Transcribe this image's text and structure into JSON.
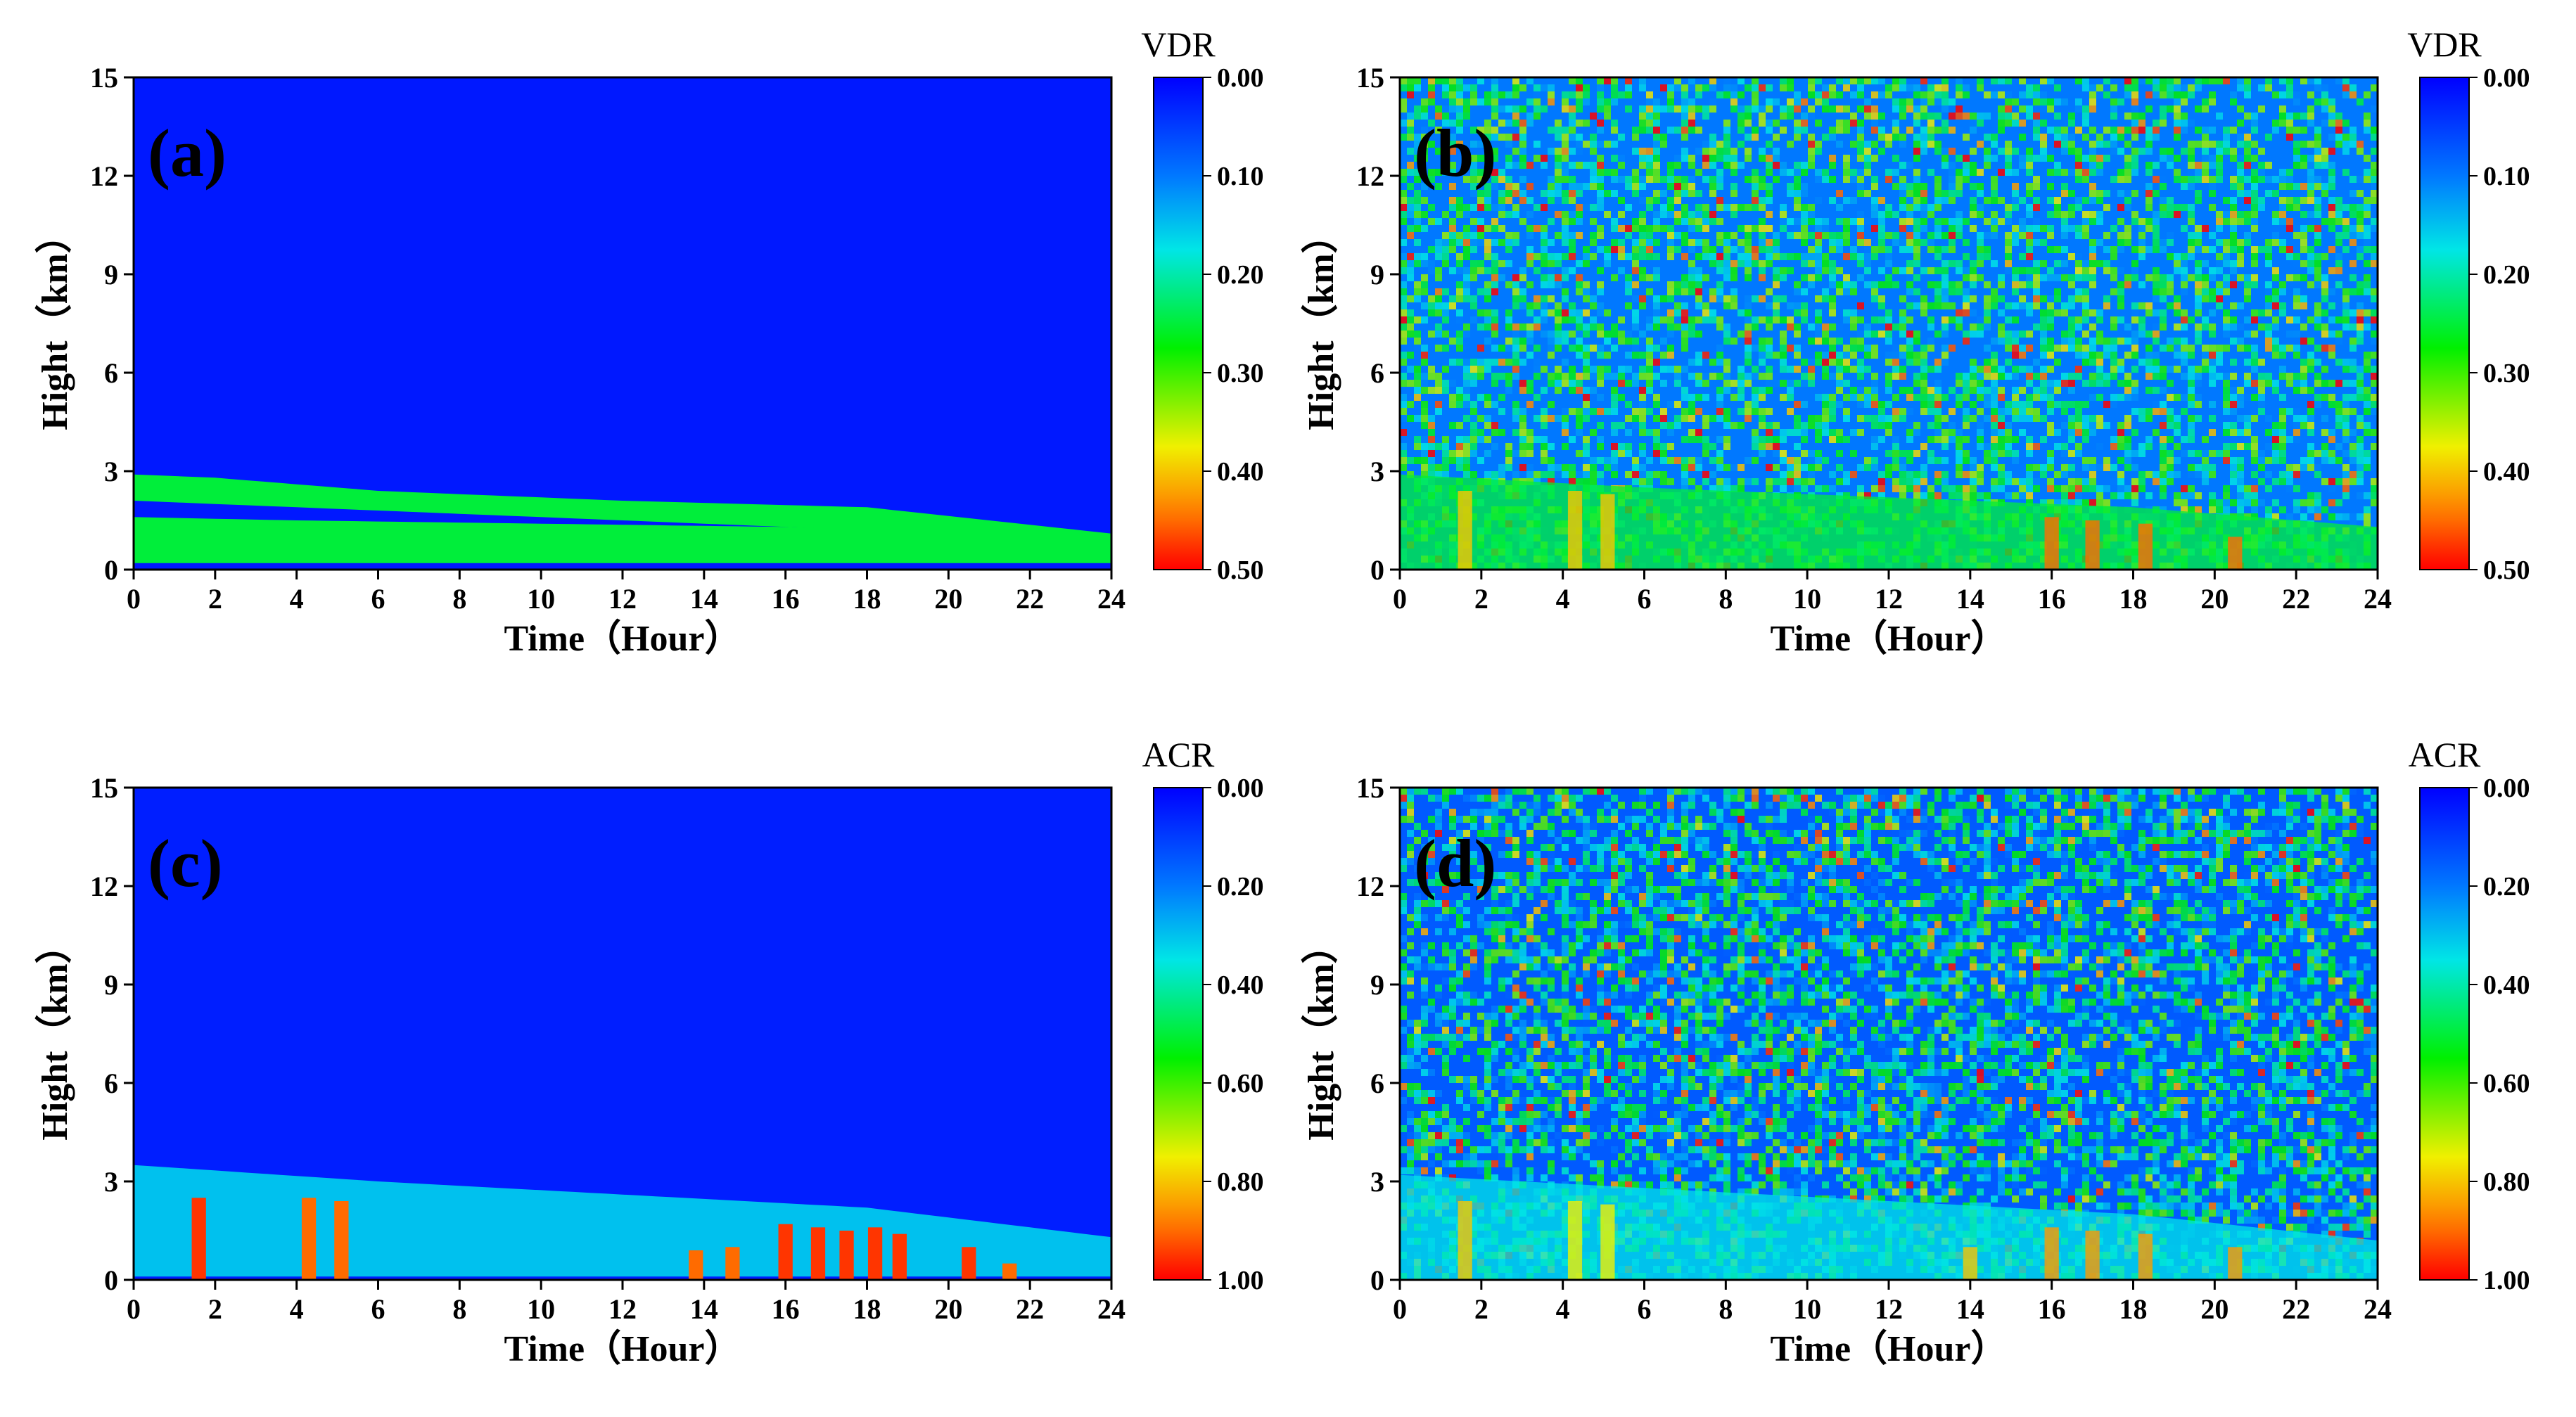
{
  "chart_data": [
    {
      "type": "heatmap",
      "panel": "(a)",
      "xlabel": "Time（Hour）",
      "ylabel": "Hight（km）",
      "xlim": [
        0,
        24
      ],
      "ylim": [
        0,
        15
      ],
      "xticks": [
        "0",
        "2",
        "4",
        "6",
        "8",
        "10",
        "12",
        "14",
        "16",
        "18",
        "20",
        "22",
        "24"
      ],
      "yticks": [
        "0",
        "3",
        "6",
        "9",
        "12",
        "15"
      ],
      "colorbar": {
        "title": "VDR",
        "ticks": [
          "0.00",
          "0.10",
          "0.20",
          "0.30",
          "0.40",
          "0.50"
        ],
        "range": [
          0.0,
          0.5
        ]
      },
      "noise": false,
      "background_value": 0.02,
      "layers": [
        {
          "name": "upper aerosol layer",
          "value": 0.25,
          "top": [
            [
              0,
              2.9
            ],
            [
              2,
              2.8
            ],
            [
              6,
              2.4
            ],
            [
              12,
              2.1
            ],
            [
              18,
              1.9
            ],
            [
              24,
              1.1
            ]
          ],
          "bottom": [
            [
              0,
              2.1
            ],
            [
              2,
              2.0
            ],
            [
              6,
              1.8
            ],
            [
              12,
              1.5
            ],
            [
              18,
              1.2
            ],
            [
              24,
              0.6
            ]
          ]
        },
        {
          "name": "lower aerosol layer",
          "value": 0.25,
          "top": [
            [
              0,
              1.6
            ],
            [
              4,
              1.5
            ],
            [
              10,
              1.4
            ],
            [
              16,
              1.3
            ],
            [
              24,
              1.0
            ]
          ],
          "bottom": [
            [
              0,
              0.2
            ],
            [
              24,
              0.2
            ]
          ]
        }
      ],
      "spikes": []
    },
    {
      "type": "heatmap",
      "panel": "(b)",
      "xlabel": "Time（Hour）",
      "ylabel": "Hight（km）",
      "xlim": [
        0,
        24
      ],
      "ylim": [
        0,
        15
      ],
      "xticks": [
        "0",
        "2",
        "4",
        "6",
        "8",
        "10",
        "12",
        "14",
        "16",
        "18",
        "20",
        "22",
        "24"
      ],
      "yticks": [
        "0",
        "3",
        "6",
        "9",
        "12",
        "15"
      ],
      "colorbar": {
        "title": "VDR",
        "ticks": [
          "0.00",
          "0.10",
          "0.20",
          "0.30",
          "0.40",
          "0.50"
        ],
        "range": [
          0.0,
          0.5
        ]
      },
      "noise": true,
      "background_value": 0.1,
      "layers": [
        {
          "name": "aerosol layer",
          "value": 0.25,
          "top": [
            [
              0,
              2.9
            ],
            [
              6,
              2.5
            ],
            [
              12,
              2.2
            ],
            [
              18,
              1.9
            ],
            [
              24,
              1.3
            ]
          ],
          "bottom": [
            [
              0,
              0.0
            ],
            [
              24,
              0.0
            ]
          ]
        }
      ],
      "spikes": [
        {
          "time": 1.6,
          "top": 2.4,
          "value": 0.4
        },
        {
          "time": 4.3,
          "top": 2.4,
          "value": 0.4
        },
        {
          "time": 5.1,
          "top": 2.3,
          "value": 0.4
        },
        {
          "time": 16.0,
          "top": 1.6,
          "value": 0.45
        },
        {
          "time": 17.0,
          "top": 1.5,
          "value": 0.45
        },
        {
          "time": 18.3,
          "top": 1.4,
          "value": 0.45
        },
        {
          "time": 20.5,
          "top": 1.0,
          "value": 0.45
        }
      ]
    },
    {
      "type": "heatmap",
      "panel": "(c)",
      "xlabel": "Time（Hour）",
      "ylabel": "Hight（km）",
      "xlim": [
        0,
        24
      ],
      "ylim": [
        0,
        15
      ],
      "xticks": [
        "0",
        "2",
        "4",
        "6",
        "8",
        "10",
        "12",
        "14",
        "16",
        "18",
        "20",
        "22",
        "24"
      ],
      "yticks": [
        "0",
        "3",
        "6",
        "9",
        "12",
        "15"
      ],
      "colorbar": {
        "title": "ACR",
        "ticks": [
          "0.00",
          "0.20",
          "0.40",
          "0.60",
          "0.80",
          "1.00"
        ],
        "range": [
          0.0,
          1.0
        ]
      },
      "noise": false,
      "background_value": 0.05,
      "layers": [
        {
          "name": "aerosol layer",
          "value": 0.3,
          "top": [
            [
              0,
              3.5
            ],
            [
              6,
              3.0
            ],
            [
              12,
              2.6
            ],
            [
              18,
              2.2
            ],
            [
              24,
              1.3
            ]
          ],
          "bottom": [
            [
              0,
              0.1
            ],
            [
              24,
              0.1
            ]
          ]
        }
      ],
      "spikes": [
        {
          "time": 1.6,
          "top": 2.5,
          "value": 0.95
        },
        {
          "time": 4.3,
          "top": 2.5,
          "value": 0.9
        },
        {
          "time": 5.1,
          "top": 2.4,
          "value": 0.9
        },
        {
          "time": 13.8,
          "top": 0.9,
          "value": 0.9
        },
        {
          "time": 14.7,
          "top": 1.0,
          "value": 0.9
        },
        {
          "time": 16.0,
          "top": 1.7,
          "value": 0.95
        },
        {
          "time": 16.8,
          "top": 1.6,
          "value": 0.95
        },
        {
          "time": 17.5,
          "top": 1.5,
          "value": 0.95
        },
        {
          "time": 18.2,
          "top": 1.6,
          "value": 0.95
        },
        {
          "time": 18.8,
          "top": 1.4,
          "value": 0.95
        },
        {
          "time": 20.5,
          "top": 1.0,
          "value": 0.95
        },
        {
          "time": 21.5,
          "top": 0.5,
          "value": 0.9
        }
      ]
    },
    {
      "type": "heatmap",
      "panel": "(d)",
      "xlabel": "Time（Hour）",
      "ylabel": "Hight（km）",
      "xlim": [
        0,
        24
      ],
      "ylim": [
        0,
        15
      ],
      "xticks": [
        "0",
        "2",
        "4",
        "6",
        "8",
        "10",
        "12",
        "14",
        "16",
        "18",
        "20",
        "22",
        "24"
      ],
      "yticks": [
        "0",
        "3",
        "6",
        "9",
        "12",
        "15"
      ],
      "colorbar": {
        "title": "ACR",
        "ticks": [
          "0.00",
          "0.20",
          "0.40",
          "0.60",
          "0.80",
          "1.00"
        ],
        "range": [
          0.0,
          1.0
        ]
      },
      "noise": true,
      "background_value": 0.15,
      "layers": [
        {
          "name": "aerosol layer",
          "value": 0.35,
          "top": [
            [
              0,
              3.2
            ],
            [
              6,
              2.8
            ],
            [
              12,
              2.4
            ],
            [
              18,
              2.0
            ],
            [
              24,
              1.2
            ]
          ],
          "bottom": [
            [
              0,
              0.0
            ],
            [
              24,
              0.0
            ]
          ]
        }
      ],
      "spikes": [
        {
          "time": 1.6,
          "top": 2.4,
          "value": 0.8
        },
        {
          "time": 4.3,
          "top": 2.4,
          "value": 0.75
        },
        {
          "time": 5.1,
          "top": 2.3,
          "value": 0.75
        },
        {
          "time": 14.0,
          "top": 1.0,
          "value": 0.8
        },
        {
          "time": 16.0,
          "top": 1.6,
          "value": 0.85
        },
        {
          "time": 17.0,
          "top": 1.5,
          "value": 0.85
        },
        {
          "time": 18.3,
          "top": 1.4,
          "value": 0.85
        },
        {
          "time": 20.5,
          "top": 1.0,
          "value": 0.85
        }
      ]
    }
  ]
}
